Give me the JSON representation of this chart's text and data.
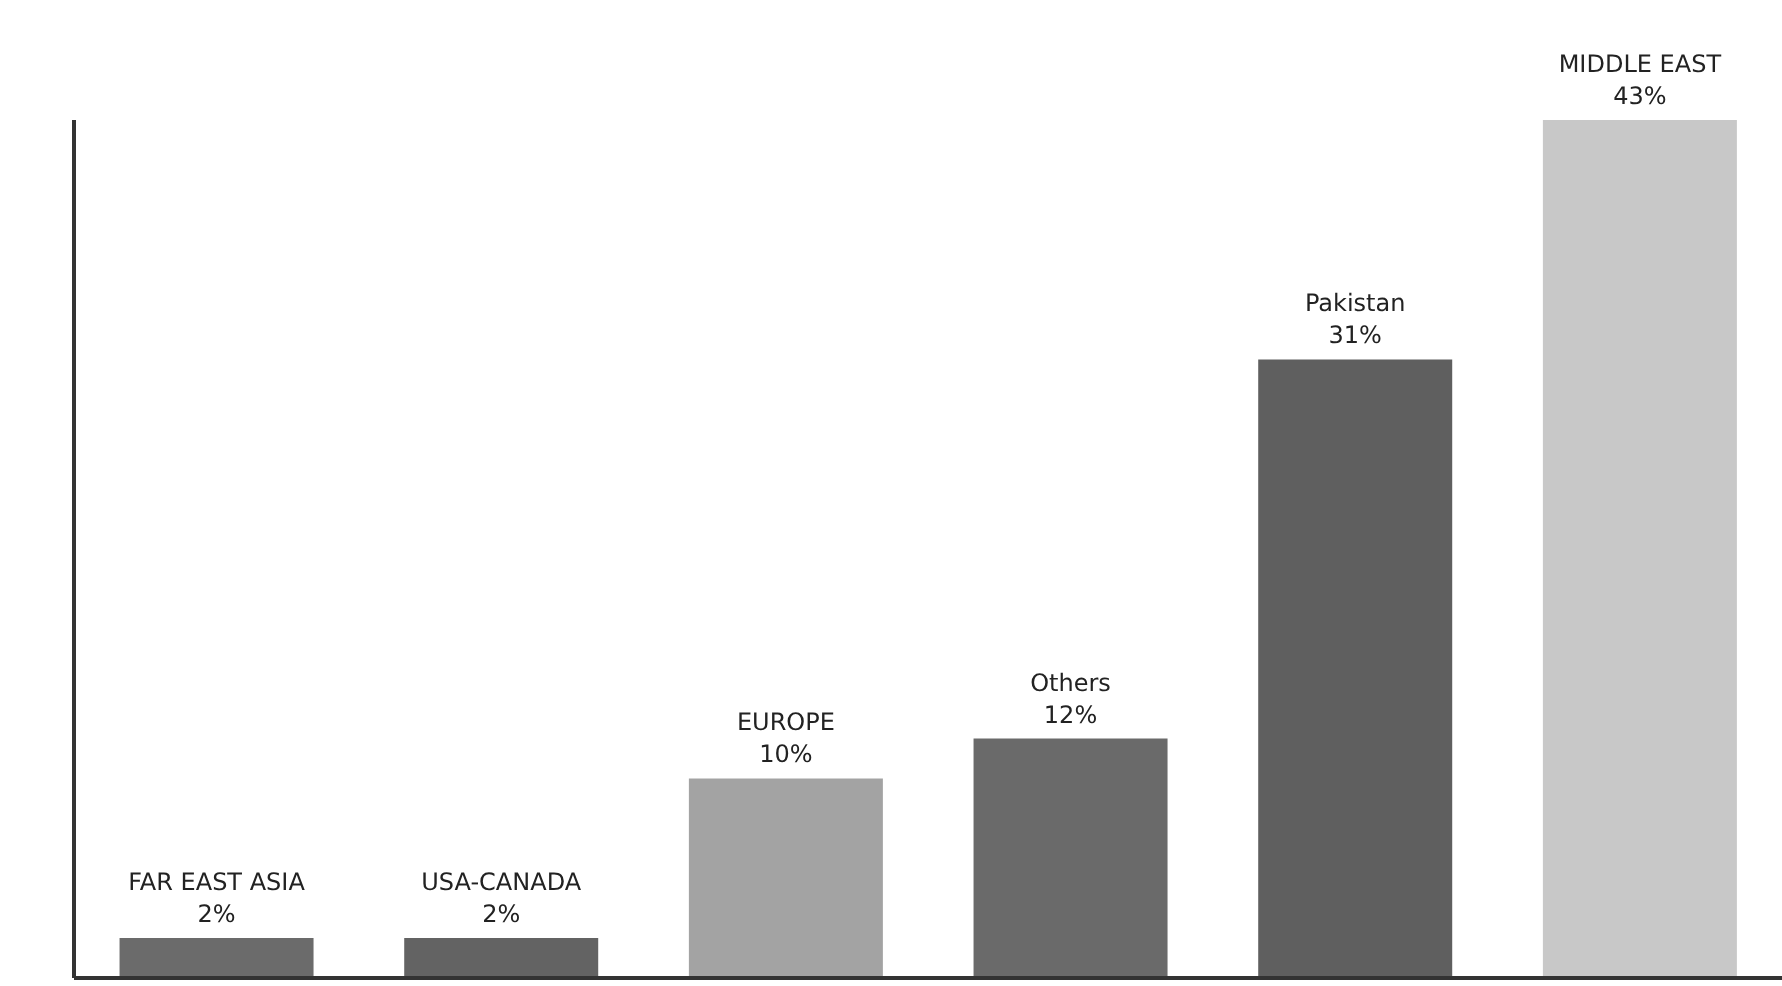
{
  "chart_data": {
    "type": "bar",
    "categories": [
      "FAR EAST ASIA",
      "USA-CANADA",
      "EUROPE",
      "Others",
      "Pakistan",
      "MIDDLE EAST"
    ],
    "values": [
      2,
      2,
      10,
      12,
      31,
      43
    ],
    "colors": [
      "#6b6b6b",
      "#636363",
      "#a3a3a3",
      "#6a6a6a",
      "#5f5f5f",
      "#c8c8c8"
    ],
    "value_labels": [
      "2%",
      "2%",
      "10%",
      "12%",
      "31%",
      "43%"
    ]
  }
}
